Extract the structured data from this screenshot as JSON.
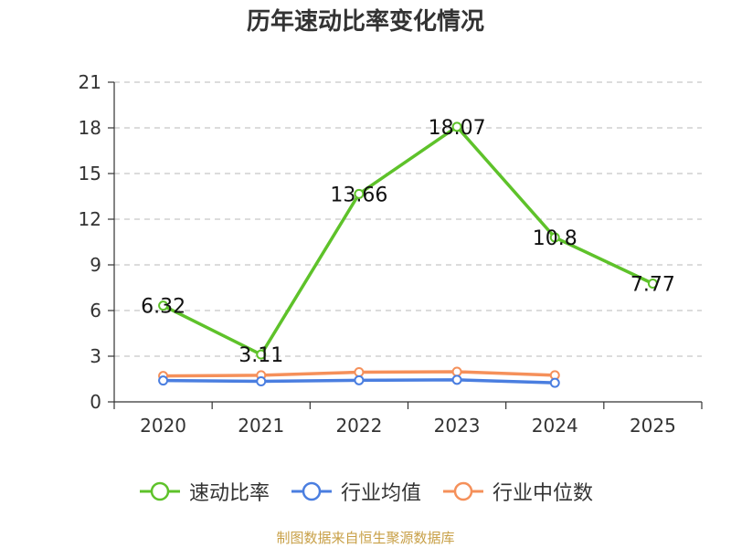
{
  "chart_data": {
    "type": "line",
    "title": "历年速动比率变化情况",
    "categories": [
      "2020",
      "2021",
      "2022",
      "2023",
      "2024",
      "2025"
    ],
    "ylim": [
      0,
      21
    ],
    "yticks": [
      0,
      3,
      6,
      9,
      12,
      15,
      18,
      21
    ],
    "series": [
      {
        "name": "速动比率",
        "color": "#5ec22a",
        "values": [
          6.32,
          3.11,
          13.66,
          18.07,
          10.8,
          7.77
        ],
        "labels": [
          "6.32",
          "3.11",
          "13.66",
          "18.07",
          "10.8",
          "7.77"
        ]
      },
      {
        "name": "行业均值",
        "color": "#4a7ee0",
        "values": [
          1.4,
          1.35,
          1.42,
          1.45,
          1.25,
          null
        ]
      },
      {
        "name": "行业中位数",
        "color": "#f5905a",
        "values": [
          1.7,
          1.75,
          1.95,
          1.98,
          1.75,
          null
        ]
      }
    ],
    "grid": true,
    "legend": "bottom-center"
  },
  "source": "制图数据来自恒生聚源数据库"
}
